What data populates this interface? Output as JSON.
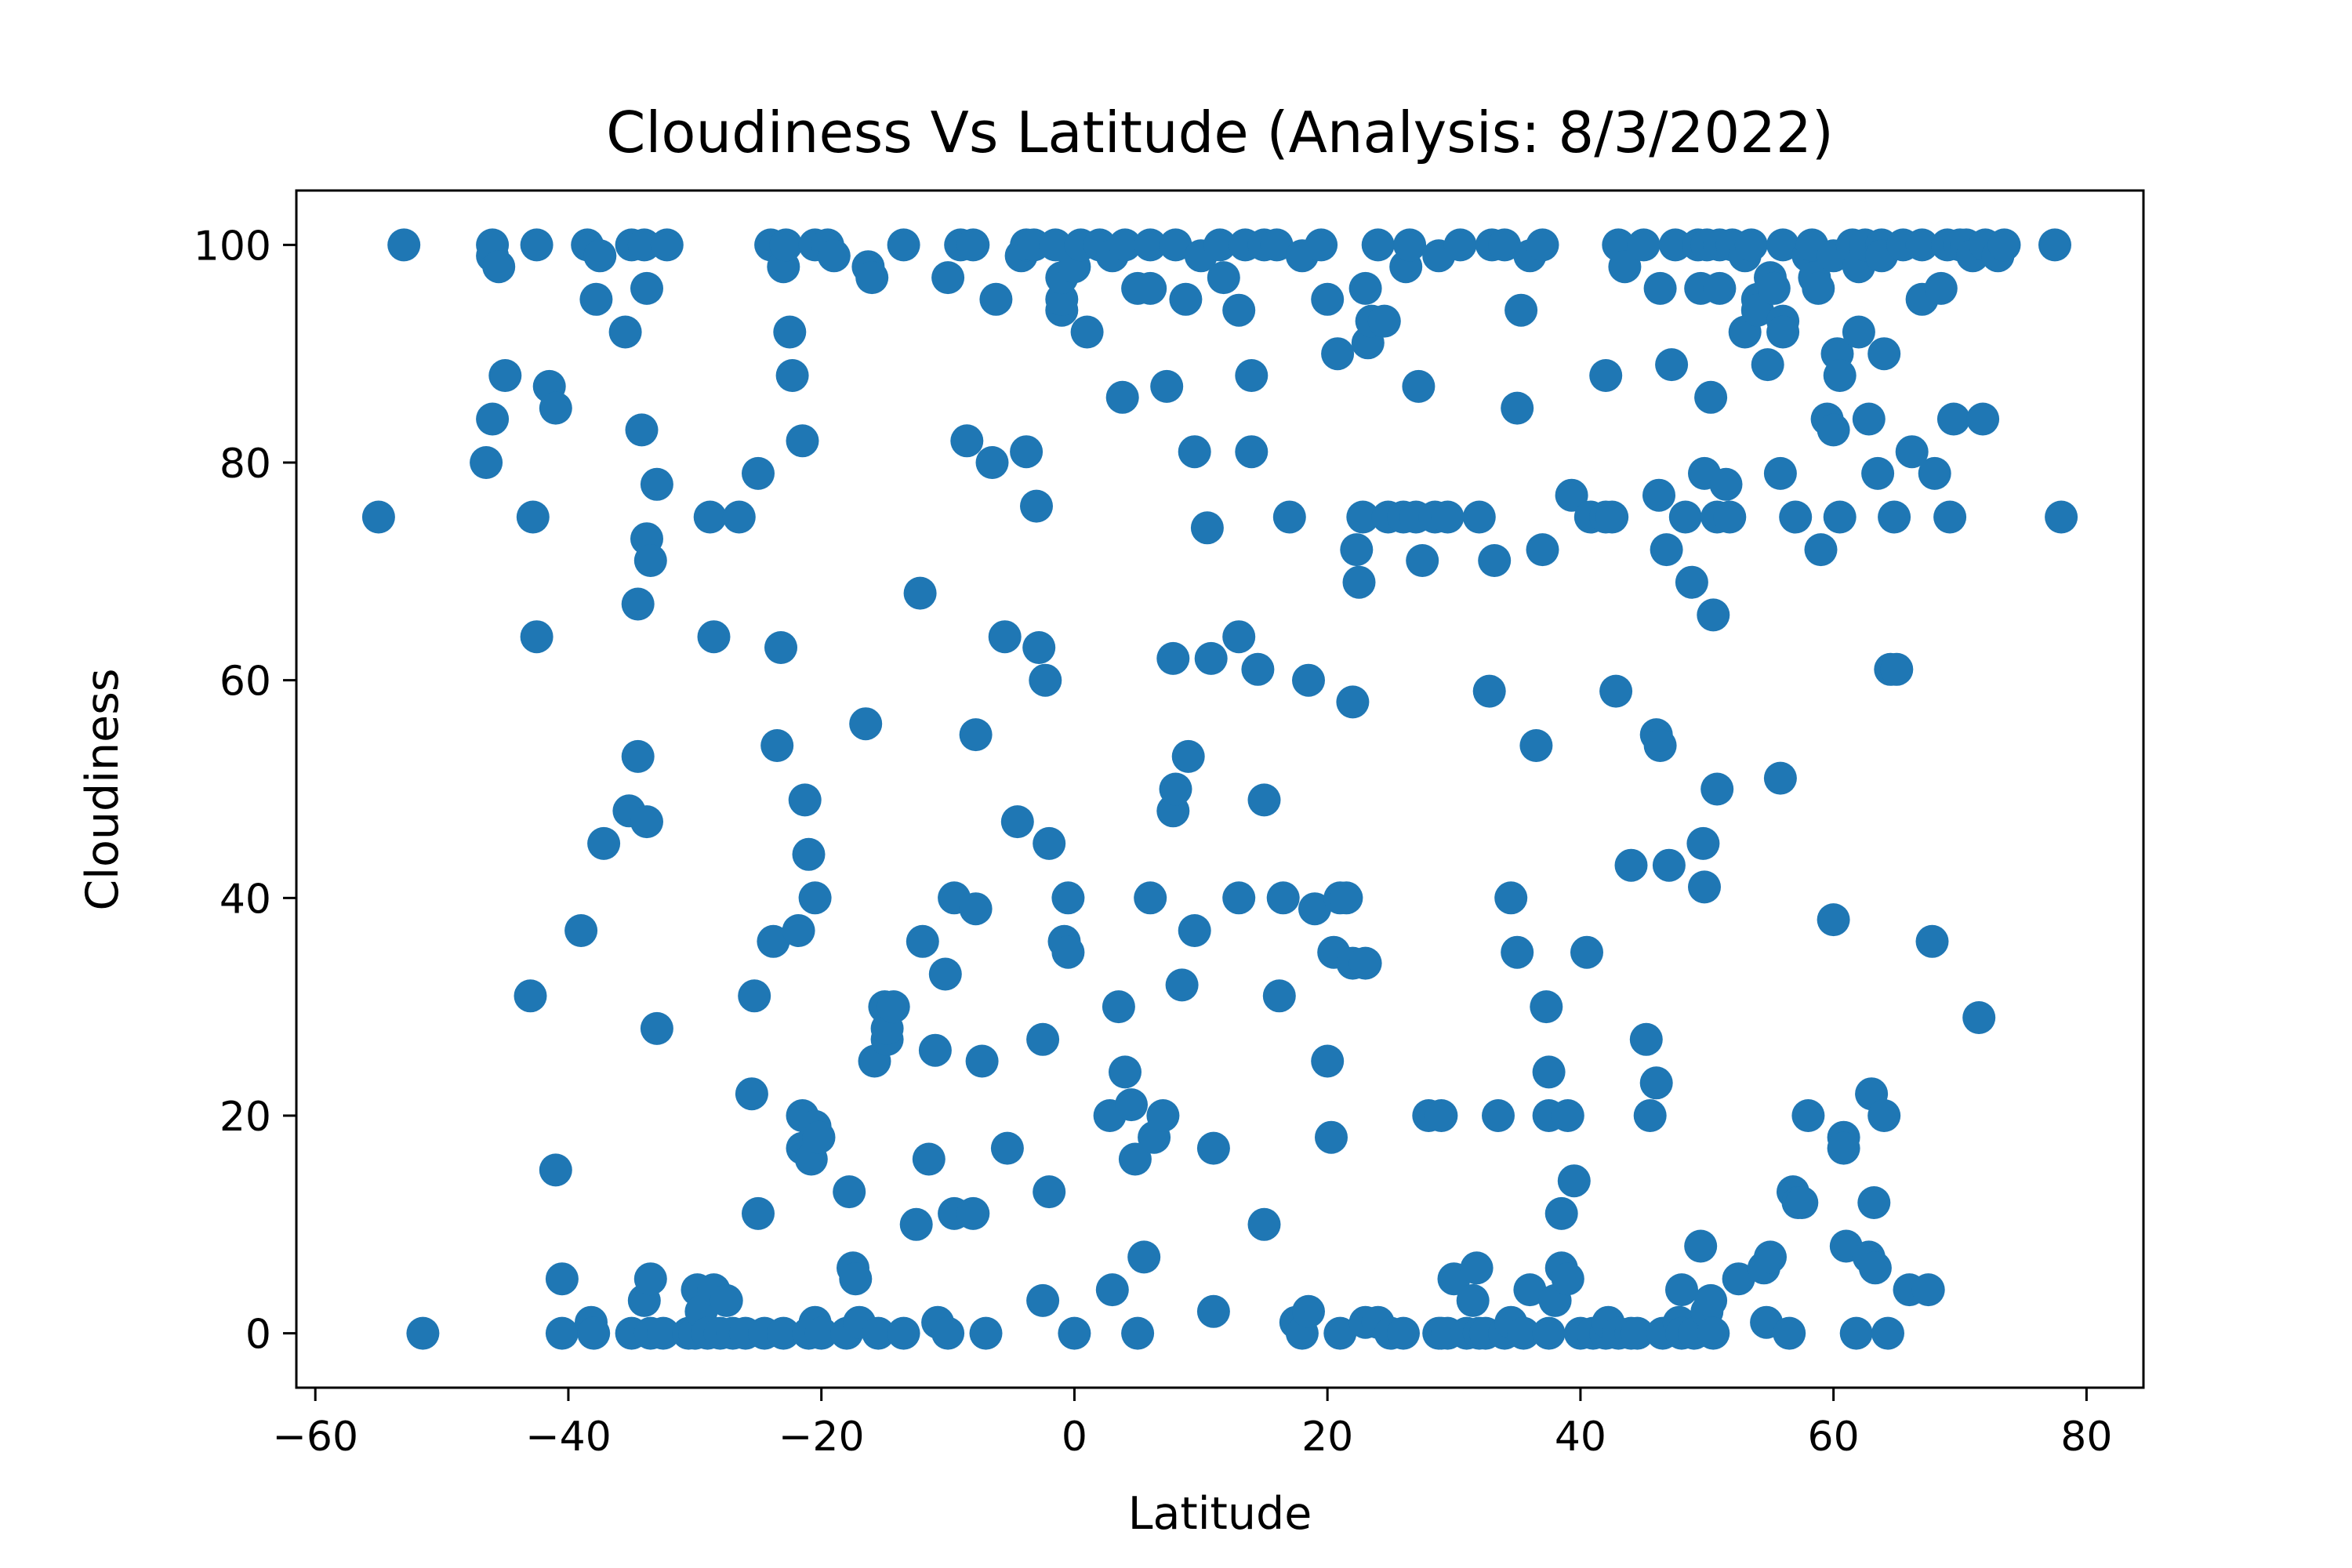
{
  "chart_data": {
    "type": "scatter",
    "title": "Cloudiness Vs Latitude (Analysis: 8/3/2022)",
    "xlabel": "Latitude",
    "ylabel": "Cloudiness",
    "xlim": [
      -61.5,
      84.5
    ],
    "ylim": [
      -5,
      105
    ],
    "xticks": [
      -60,
      -40,
      -20,
      0,
      20,
      40,
      60,
      80
    ],
    "xtick_labels": [
      "−60",
      "−40",
      "−20",
      "0",
      "20",
      "40",
      "60",
      "80"
    ],
    "yticks": [
      0,
      20,
      40,
      60,
      80,
      100
    ],
    "ytick_labels": [
      "0",
      "20",
      "40",
      "60",
      "80",
      "100"
    ],
    "grid": false,
    "marker_color": "#1f77b4",
    "points": [
      [
        -55,
        75
      ],
      [
        -53,
        100
      ],
      [
        -51.5,
        0
      ],
      [
        -46.5,
        80
      ],
      [
        -46,
        84
      ],
      [
        -46,
        99
      ],
      [
        -46,
        100
      ],
      [
        -45.5,
        98
      ],
      [
        -45,
        88
      ],
      [
        -43,
        31
      ],
      [
        -42.8,
        75
      ],
      [
        -42.5,
        64
      ],
      [
        -42.5,
        100
      ],
      [
        -41.5,
        87
      ],
      [
        -41,
        85
      ],
      [
        -41,
        15
      ],
      [
        -40.5,
        5
      ],
      [
        -40.5,
        0
      ],
      [
        -39,
        37
      ],
      [
        -38.5,
        100
      ],
      [
        -38.2,
        1
      ],
      [
        -38,
        0
      ],
      [
        -37.8,
        95
      ],
      [
        -37.5,
        99
      ],
      [
        -37.2,
        45
      ],
      [
        -35.5,
        92
      ],
      [
        -35.2,
        48
      ],
      [
        -35,
        0
      ],
      [
        -35,
        100
      ],
      [
        -34.5,
        53
      ],
      [
        -34.5,
        67
      ],
      [
        -34.2,
        83
      ],
      [
        -34,
        3
      ],
      [
        -34,
        100
      ],
      [
        -33.8,
        73
      ],
      [
        -33.8,
        47
      ],
      [
        -33.8,
        96
      ],
      [
        -33.5,
        71
      ],
      [
        -33.5,
        5
      ],
      [
        -33.5,
        0
      ],
      [
        -33,
        78
      ],
      [
        -33,
        28
      ],
      [
        -32.5,
        0
      ],
      [
        -32.2,
        100
      ],
      [
        -30.5,
        0
      ],
      [
        -30,
        0
      ],
      [
        -29.8,
        4
      ],
      [
        -29.5,
        2
      ],
      [
        -29,
        0
      ],
      [
        -28.8,
        75
      ],
      [
        -28.5,
        64
      ],
      [
        -28.5,
        4
      ],
      [
        -28,
        0
      ],
      [
        -27.5,
        3
      ],
      [
        -27,
        0
      ],
      [
        -26.5,
        75
      ],
      [
        -26,
        0
      ],
      [
        -25.5,
        22
      ],
      [
        -25.3,
        31
      ],
      [
        -25,
        11
      ],
      [
        -25,
        79
      ],
      [
        -24.5,
        0
      ],
      [
        -24,
        100
      ],
      [
        -23.8,
        36
      ],
      [
        -23.5,
        54
      ],
      [
        -23.2,
        63
      ],
      [
        -23,
        0
      ],
      [
        -23,
        98
      ],
      [
        -22.8,
        100
      ],
      [
        -22.5,
        92
      ],
      [
        -22.3,
        88
      ],
      [
        -21.8,
        37
      ],
      [
        -21.5,
        17
      ],
      [
        -21.5,
        20
      ],
      [
        -21.5,
        82
      ],
      [
        -21.3,
        49
      ],
      [
        -21,
        0
      ],
      [
        -21,
        44
      ],
      [
        -20.8,
        16
      ],
      [
        -20.5,
        19
      ],
      [
        -20.5,
        1
      ],
      [
        -20.5,
        100
      ],
      [
        -20.5,
        40
      ],
      [
        -20.2,
        18
      ],
      [
        -20,
        0
      ],
      [
        -19.5,
        100
      ],
      [
        -19,
        99
      ],
      [
        -18,
        0
      ],
      [
        -17.8,
        13
      ],
      [
        -17.5,
        6
      ],
      [
        -17.3,
        5
      ],
      [
        -17,
        1
      ],
      [
        -16.5,
        56
      ],
      [
        -16.3,
        98
      ],
      [
        -16,
        97
      ],
      [
        -15.8,
        25
      ],
      [
        -15.5,
        0
      ],
      [
        -15,
        30
      ],
      [
        -14.8,
        27
      ],
      [
        -14.8,
        28
      ],
      [
        -14.3,
        30
      ],
      [
        -13.5,
        100
      ],
      [
        -13.5,
        0
      ],
      [
        -12.5,
        10
      ],
      [
        -12.2,
        68
      ],
      [
        -12,
        36
      ],
      [
        -11.5,
        16
      ],
      [
        -11,
        26
      ],
      [
        -10.8,
        1
      ],
      [
        -10.2,
        33
      ],
      [
        -10,
        0
      ],
      [
        -10,
        97
      ],
      [
        -9.5,
        40
      ],
      [
        -9.5,
        11
      ],
      [
        -9,
        100
      ],
      [
        -8.5,
        82
      ],
      [
        -8,
        11
      ],
      [
        -8,
        100
      ],
      [
        -7.8,
        55
      ],
      [
        -7.8,
        39
      ],
      [
        -7.3,
        25
      ],
      [
        -7,
        0
      ],
      [
        -6.5,
        80
      ],
      [
        -6.2,
        95
      ],
      [
        -5.5,
        64
      ],
      [
        -5.3,
        17
      ],
      [
        -4.5,
        47
      ],
      [
        -4.2,
        99
      ],
      [
        -3.8,
        100
      ],
      [
        -3.8,
        81
      ],
      [
        -3.2,
        100
      ],
      [
        -3,
        76
      ],
      [
        -2.8,
        63
      ],
      [
        -2.5,
        3
      ],
      [
        -2.5,
        27
      ],
      [
        -2.3,
        60
      ],
      [
        -2,
        13
      ],
      [
        -2,
        45
      ],
      [
        -1.5,
        100
      ],
      [
        -1,
        94
      ],
      [
        -1,
        95
      ],
      [
        -1,
        97
      ],
      [
        -0.8,
        36
      ],
      [
        -0.5,
        35
      ],
      [
        -0.5,
        40
      ],
      [
        0,
        98
      ],
      [
        0,
        0
      ],
      [
        0.5,
        100
      ],
      [
        1,
        92
      ],
      [
        2,
        100
      ],
      [
        3,
        99
      ],
      [
        2.8,
        20
      ],
      [
        3,
        4
      ],
      [
        3.5,
        30
      ],
      [
        3.8,
        86
      ],
      [
        4,
        24
      ],
      [
        4,
        100
      ],
      [
        4.5,
        21
      ],
      [
        4.8,
        16
      ],
      [
        5,
        96
      ],
      [
        5,
        0
      ],
      [
        5.5,
        7
      ],
      [
        6,
        100
      ],
      [
        6,
        96
      ],
      [
        6,
        40
      ],
      [
        6.3,
        18
      ],
      [
        7,
        20
      ],
      [
        7.3,
        87
      ],
      [
        7.8,
        62
      ],
      [
        7.8,
        48
      ],
      [
        8,
        50
      ],
      [
        8,
        100
      ],
      [
        8.5,
        32
      ],
      [
        8.8,
        95
      ],
      [
        9,
        53
      ],
      [
        9.5,
        37
      ],
      [
        9.5,
        81
      ],
      [
        10,
        99
      ],
      [
        10.5,
        74
      ],
      [
        10.8,
        62
      ],
      [
        11,
        2
      ],
      [
        11,
        17
      ],
      [
        11.5,
        100
      ],
      [
        11.8,
        97
      ],
      [
        13,
        40
      ],
      [
        13,
        94
      ],
      [
        13,
        64
      ],
      [
        13.5,
        100
      ],
      [
        14,
        88
      ],
      [
        14,
        81
      ],
      [
        14.5,
        61
      ],
      [
        15,
        100
      ],
      [
        15,
        49
      ],
      [
        15,
        10
      ],
      [
        16,
        100
      ],
      [
        16.2,
        31
      ],
      [
        16.5,
        40
      ],
      [
        17,
        75
      ],
      [
        17.5,
        1
      ],
      [
        18,
        99
      ],
      [
        18,
        0
      ],
      [
        18.5,
        2
      ],
      [
        18.5,
        60
      ],
      [
        19,
        39
      ],
      [
        19.5,
        100
      ],
      [
        20,
        95
      ],
      [
        20,
        25
      ],
      [
        20.3,
        18
      ],
      [
        20.5,
        35
      ],
      [
        20.8,
        90
      ],
      [
        21,
        40
      ],
      [
        21,
        0
      ],
      [
        21.5,
        40
      ],
      [
        22,
        34
      ],
      [
        22,
        58
      ],
      [
        22.3,
        72
      ],
      [
        22.5,
        69
      ],
      [
        22.8,
        75
      ],
      [
        23,
        96
      ],
      [
        23,
        34
      ],
      [
        23,
        1
      ],
      [
        23.2,
        91
      ],
      [
        23.5,
        93
      ],
      [
        24,
        1
      ],
      [
        24,
        100
      ],
      [
        24.5,
        93
      ],
      [
        24.8,
        75
      ],
      [
        25,
        0
      ],
      [
        26,
        75
      ],
      [
        26,
        0
      ],
      [
        26.2,
        98
      ],
      [
        26.5,
        100
      ],
      [
        27,
        75
      ],
      [
        27.2,
        87
      ],
      [
        27.5,
        71
      ],
      [
        28,
        20
      ],
      [
        28.5,
        75
      ],
      [
        28.8,
        99
      ],
      [
        28.8,
        0
      ],
      [
        29,
        0
      ],
      [
        29,
        20
      ],
      [
        29.5,
        0
      ],
      [
        29.5,
        75
      ],
      [
        30,
        5
      ],
      [
        30.5,
        100
      ],
      [
        31,
        0
      ],
      [
        31.5,
        3
      ],
      [
        31.8,
        6
      ],
      [
        32,
        75
      ],
      [
        32,
        0
      ],
      [
        32.5,
        0
      ],
      [
        32.8,
        59
      ],
      [
        33,
        100
      ],
      [
        33.2,
        71
      ],
      [
        33.5,
        20
      ],
      [
        34,
        100
      ],
      [
        34,
        0
      ],
      [
        34.5,
        1
      ],
      [
        34.5,
        40
      ],
      [
        35,
        35
      ],
      [
        35,
        85
      ],
      [
        35.3,
        94
      ],
      [
        35.5,
        0
      ],
      [
        36,
        99
      ],
      [
        36,
        4
      ],
      [
        36.5,
        54
      ],
      [
        37,
        100
      ],
      [
        37,
        72
      ],
      [
        37.3,
        30
      ],
      [
        37.5,
        24
      ],
      [
        37.5,
        20
      ],
      [
        37.5,
        0
      ],
      [
        38,
        3
      ],
      [
        38.5,
        6
      ],
      [
        38.5,
        11
      ],
      [
        39,
        5
      ],
      [
        39,
        20
      ],
      [
        39.3,
        77
      ],
      [
        39.5,
        14
      ],
      [
        40,
        0
      ],
      [
        40.5,
        35
      ],
      [
        40.8,
        75
      ],
      [
        41,
        0
      ],
      [
        42,
        75
      ],
      [
        42,
        88
      ],
      [
        42,
        0
      ],
      [
        42.2,
        1
      ],
      [
        42.5,
        75
      ],
      [
        42.8,
        59
      ],
      [
        43,
        100
      ],
      [
        43,
        0
      ],
      [
        43.5,
        98
      ],
      [
        44,
        43
      ],
      [
        44,
        0
      ],
      [
        44.5,
        0
      ],
      [
        45,
        100
      ],
      [
        45.2,
        27
      ],
      [
        45.5,
        20
      ],
      [
        46,
        23
      ],
      [
        46,
        55
      ],
      [
        46.2,
        77
      ],
      [
        46.3,
        54
      ],
      [
        46.3,
        96
      ],
      [
        46.5,
        0
      ],
      [
        46.8,
        72
      ],
      [
        47,
        43
      ],
      [
        47.2,
        89
      ],
      [
        47.5,
        100
      ],
      [
        47.8,
        1
      ],
      [
        48,
        0
      ],
      [
        48,
        4
      ],
      [
        48.3,
        75
      ],
      [
        48.8,
        69
      ],
      [
        49,
        0
      ],
      [
        49.3,
        100
      ],
      [
        49.5,
        96
      ],
      [
        49.5,
        8
      ],
      [
        49.7,
        45
      ],
      [
        49.8,
        79
      ],
      [
        49.8,
        41
      ],
      [
        50,
        100
      ],
      [
        50,
        2
      ],
      [
        50.3,
        86
      ],
      [
        50.3,
        3
      ],
      [
        50.5,
        0
      ],
      [
        50.5,
        66
      ],
      [
        50.8,
        75
      ],
      [
        50.8,
        50
      ],
      [
        51,
        96
      ],
      [
        51,
        100
      ],
      [
        51.5,
        78
      ],
      [
        51.8,
        75
      ],
      [
        52,
        100
      ],
      [
        52.5,
        5
      ],
      [
        53,
        99
      ],
      [
        53,
        92
      ],
      [
        53.5,
        100
      ],
      [
        54,
        95
      ],
      [
        54,
        94
      ],
      [
        54.5,
        6
      ],
      [
        54.7,
        1
      ],
      [
        54.8,
        89
      ],
      [
        55,
        97
      ],
      [
        55,
        7
      ],
      [
        55.3,
        96
      ],
      [
        55.8,
        79
      ],
      [
        55.8,
        51
      ],
      [
        56,
        93
      ],
      [
        56,
        100
      ],
      [
        56,
        92
      ],
      [
        56.5,
        0
      ],
      [
        56.8,
        13
      ],
      [
        57,
        75
      ],
      [
        57.2,
        12
      ],
      [
        57.5,
        12
      ],
      [
        58,
        99
      ],
      [
        58,
        20
      ],
      [
        58.3,
        100
      ],
      [
        58.5,
        97
      ],
      [
        58.8,
        96
      ],
      [
        59,
        72
      ],
      [
        59.5,
        84
      ],
      [
        60,
        83
      ],
      [
        60,
        38
      ],
      [
        60,
        99
      ],
      [
        60.3,
        90
      ],
      [
        60.5,
        75
      ],
      [
        60.5,
        88
      ],
      [
        60.8,
        18
      ],
      [
        60.8,
        17
      ],
      [
        61,
        8
      ],
      [
        61.5,
        100
      ],
      [
        61.8,
        0
      ],
      [
        62,
        92
      ],
      [
        62,
        98
      ],
      [
        62.5,
        100
      ],
      [
        62.8,
        84
      ],
      [
        62.8,
        7
      ],
      [
        63,
        22
      ],
      [
        63.2,
        12
      ],
      [
        63.3,
        6
      ],
      [
        63.5,
        79
      ],
      [
        63.8,
        100
      ],
      [
        63.8,
        99
      ],
      [
        64,
        90
      ],
      [
        64,
        20
      ],
      [
        64.3,
        0
      ],
      [
        64.5,
        61
      ],
      [
        64.8,
        75
      ],
      [
        65,
        61
      ],
      [
        65.5,
        100
      ],
      [
        66,
        4
      ],
      [
        66.2,
        81
      ],
      [
        67,
        100
      ],
      [
        67,
        95
      ],
      [
        67.5,
        4
      ],
      [
        67.8,
        36
      ],
      [
        68,
        79
      ],
      [
        68.5,
        96
      ],
      [
        69,
        100
      ],
      [
        69.2,
        75
      ],
      [
        69.5,
        84
      ],
      [
        70,
        100
      ],
      [
        70.5,
        100
      ],
      [
        71,
        99
      ],
      [
        71.5,
        29
      ],
      [
        71.8,
        84
      ],
      [
        72,
        100
      ],
      [
        73,
        99
      ],
      [
        73.5,
        100
      ],
      [
        77.5,
        100
      ],
      [
        78,
        75
      ]
    ]
  }
}
